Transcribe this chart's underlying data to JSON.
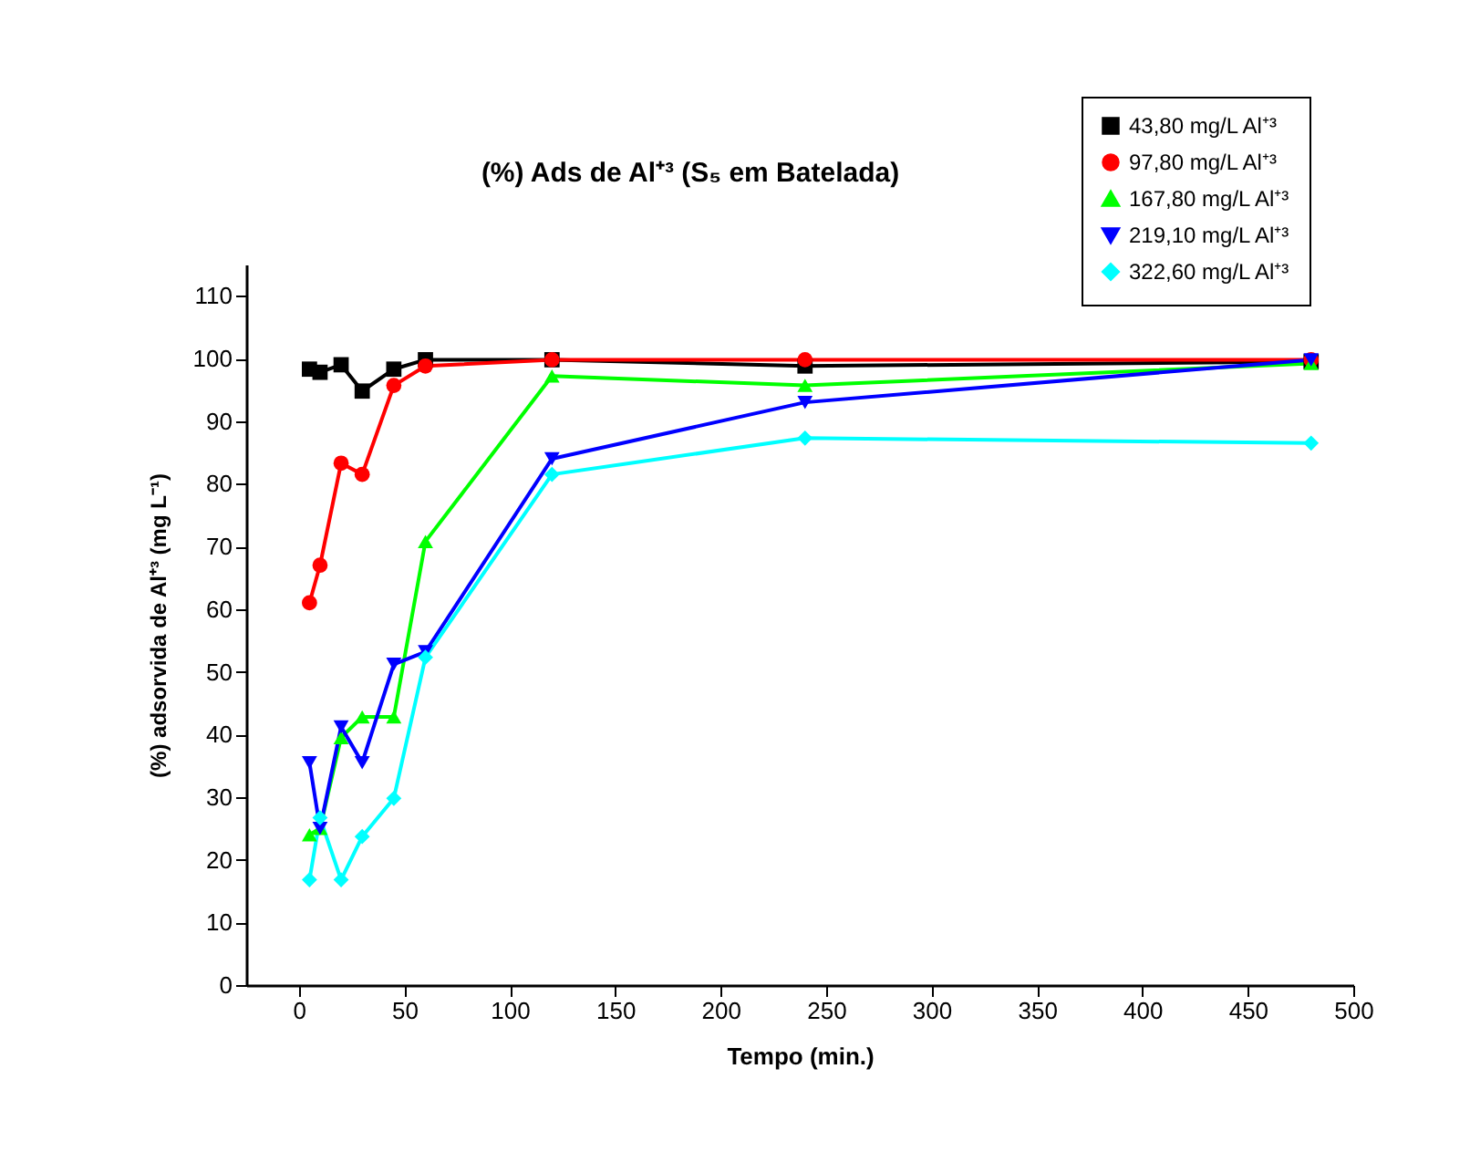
{
  "chart_data": {
    "type": "line",
    "title": "(%) Ads de Al⁺³ (S₅ em Batelada)",
    "xlabel": "Tempo (min.)",
    "ylabel": "(%) adsorvida de Al⁺³ (mg L⁻¹)",
    "x": [
      5,
      10,
      20,
      30,
      45,
      60,
      120,
      240,
      480
    ],
    "series": [
      {
        "name": "43,80 mg/L Al⁺³",
        "color": "#000000",
        "marker": "square",
        "values": [
          98.3,
          97.8,
          99,
          94.8,
          98.3,
          99.8,
          99.8,
          98.8,
          99.5
        ]
      },
      {
        "name": "97,80 mg/L Al⁺³",
        "color": "#ff0000",
        "marker": "circle",
        "values": [
          61,
          67,
          83.3,
          81.5,
          95.7,
          98.8,
          99.8,
          99.8,
          99.8
        ]
      },
      {
        "name": "167,80 mg/L Al⁺³",
        "color": "#00ff00",
        "marker": "triangle",
        "values": [
          24,
          25,
          39.5,
          42.8,
          42.8,
          70.8,
          97.2,
          95.7,
          99.2
        ]
      },
      {
        "name": "219,10 mg/L Al⁺³",
        "color": "#0000ff",
        "marker": "triangle-down",
        "values": [
          35.5,
          25,
          41.2,
          35.5,
          51.2,
          53.2,
          84,
          93,
          99.8
        ]
      },
      {
        "name": "322,60 mg/L Al⁺³",
        "color": "#00ffff",
        "marker": "diamond",
        "values": [
          16.8,
          26.7,
          16.8,
          23.7,
          29.8,
          52.3,
          81.5,
          87.3,
          86.5
        ]
      }
    ],
    "xlim": [
      -25,
      500
    ],
    "xticks": [
      0,
      50,
      100,
      150,
      200,
      250,
      300,
      350,
      400,
      450,
      500
    ],
    "ylim": [
      0,
      115
    ],
    "yticks": [
      0,
      10,
      20,
      30,
      40,
      50,
      60,
      70,
      80,
      90,
      100,
      110
    ],
    "grid": false,
    "legend": "top right",
    "line_style": "solid"
  }
}
